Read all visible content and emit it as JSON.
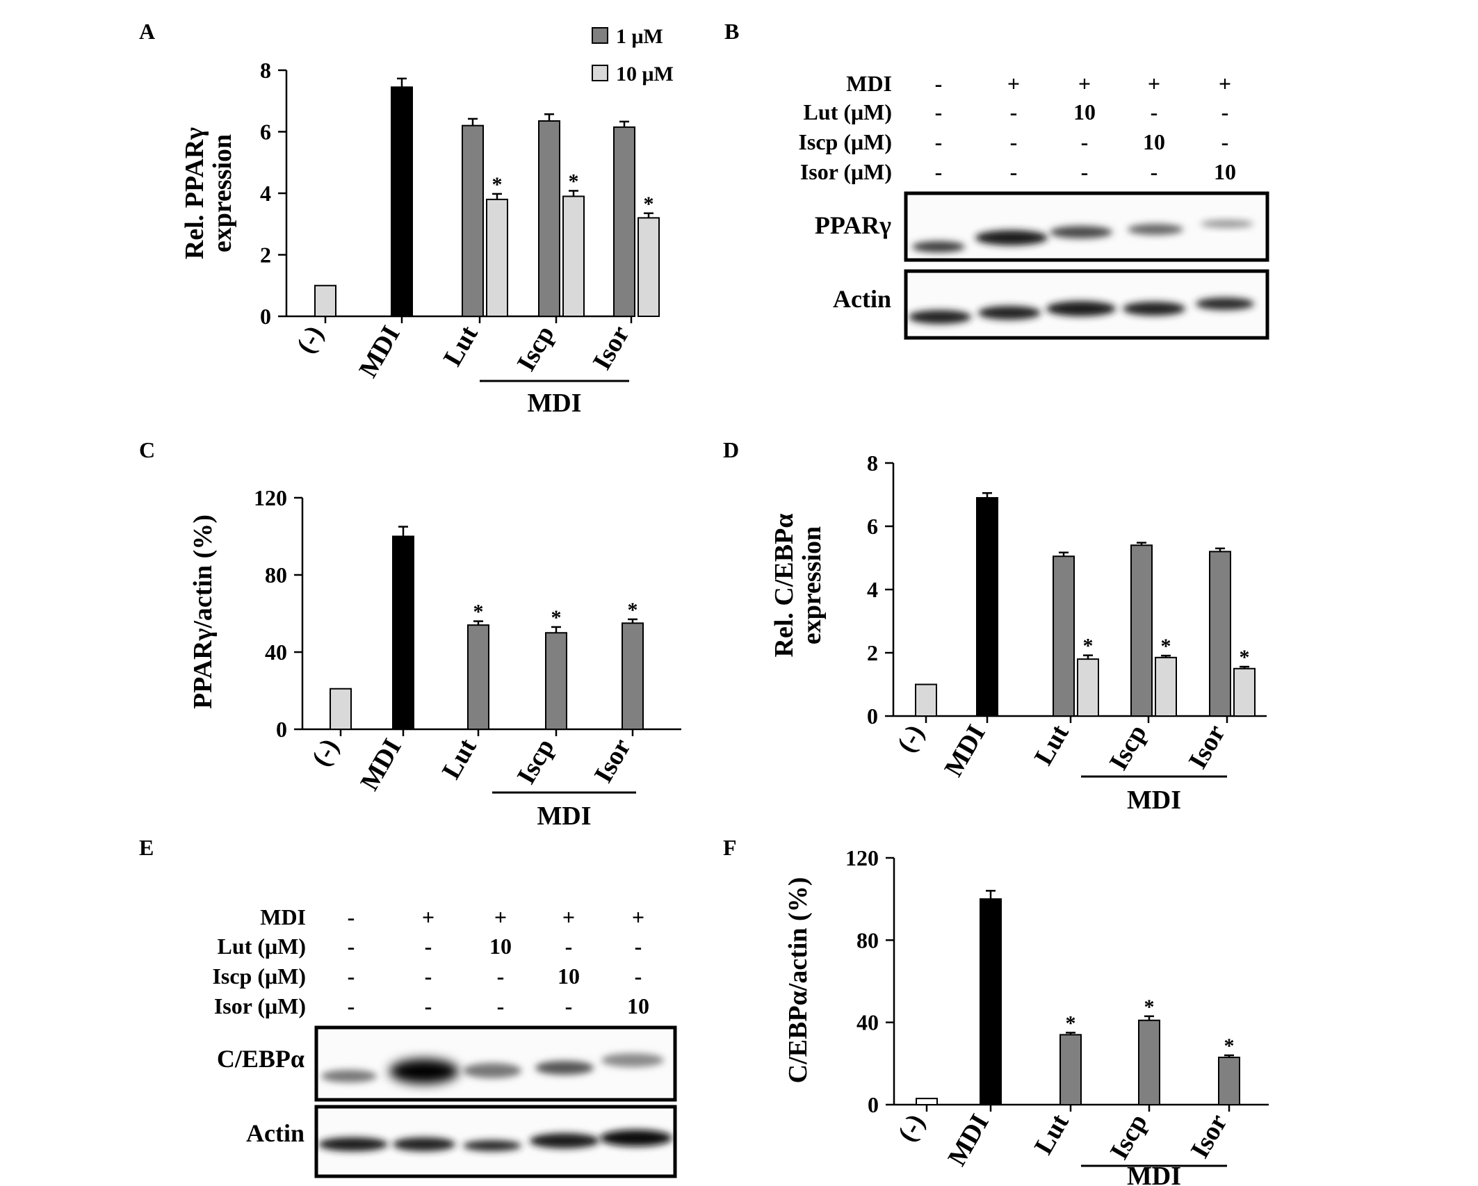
{
  "colors": {
    "dark_bar": "#808080",
    "light_bar": "#d9d9d9",
    "mdi_bar": "#000000",
    "axis": "#000000"
  },
  "panels": {
    "A": {
      "letter": "A"
    },
    "B": {
      "letter": "B"
    },
    "C": {
      "letter": "C"
    },
    "D": {
      "letter": "D"
    },
    "E": {
      "letter": "E"
    },
    "F": {
      "letter": "F"
    }
  },
  "legend": {
    "entries": [
      {
        "label": "1 μM",
        "color": "#808080"
      },
      {
        "label": "10 μM",
        "color": "#d9d9d9"
      }
    ]
  },
  "blot_B": {
    "row_labels": [
      "MDI",
      "Lut (μM)",
      "Iscp (μM)",
      "Isor (μM)"
    ],
    "row_values": [
      [
        "-",
        "+",
        "+",
        "+",
        "+"
      ],
      [
        "-",
        "-",
        "10",
        "-",
        "-"
      ],
      [
        "-",
        "-",
        "-",
        "10",
        "-"
      ],
      [
        "-",
        "-",
        "-",
        "-",
        "10"
      ]
    ],
    "band_labels": [
      "PPARγ",
      "Actin"
    ]
  },
  "blot_E": {
    "row_labels": [
      "MDI",
      "Lut (μM)",
      "Iscp (μM)",
      "Isor (μM)"
    ],
    "row_values": [
      [
        "-",
        "+",
        "+",
        "+",
        "+"
      ],
      [
        "-",
        "-",
        "10",
        "-",
        "-"
      ],
      [
        "-",
        "-",
        "-",
        "10",
        "-"
      ],
      [
        "-",
        "-",
        "-",
        "-",
        "10"
      ]
    ],
    "band_labels": [
      "C/EBPα",
      "Actin"
    ]
  },
  "chart_data": [
    {
      "panel": "A",
      "type": "bar",
      "ylabel": [
        "Rel. PPARγ",
        "expression"
      ],
      "ylim": [
        0,
        8
      ],
      "yticks": [
        "0",
        "2",
        "4",
        "6",
        "8"
      ],
      "categories": [
        "(-)",
        "MDI",
        "Lut",
        "Iscp",
        "Isor"
      ],
      "group_label": "MDI",
      "bars": [
        {
          "category": "(-)",
          "series": "10 μM",
          "value": 1.0,
          "error": 0,
          "star": false
        },
        {
          "category": "MDI",
          "series": "1 μM",
          "value": 7.45,
          "error": 0.28,
          "star": false
        },
        {
          "category": "Lut",
          "series": "1 μM",
          "value": 6.2,
          "error": 0.22,
          "star": false
        },
        {
          "category": "Lut",
          "series": "10 μM",
          "value": 3.8,
          "error": 0.18,
          "star": true
        },
        {
          "category": "Iscp",
          "series": "1 μM",
          "value": 6.35,
          "error": 0.22,
          "star": false
        },
        {
          "category": "Iscp",
          "series": "10 μM",
          "value": 3.9,
          "error": 0.18,
          "star": true
        },
        {
          "category": "Isor",
          "series": "1 μM",
          "value": 6.15,
          "error": 0.18,
          "star": false
        },
        {
          "category": "Isor",
          "series": "10 μM",
          "value": 3.2,
          "error": 0.15,
          "star": true
        }
      ]
    },
    {
      "panel": "C",
      "type": "bar",
      "ylabel": [
        "PPARγ/actin (%)"
      ],
      "ylim": [
        0,
        120
      ],
      "yticks": [
        "0",
        "40",
        "80",
        "120"
      ],
      "categories": [
        "(-)",
        "MDI",
        "Lut",
        "Iscp",
        "Isor"
      ],
      "group_label": "MDI",
      "bars": [
        {
          "category": "(-)",
          "value": 21,
          "error": 0,
          "star": false
        },
        {
          "category": "MDI",
          "value": 100,
          "error": 5,
          "star": false
        },
        {
          "category": "Lut",
          "value": 54,
          "error": 2,
          "star": true
        },
        {
          "category": "Iscp",
          "value": 50,
          "error": 3,
          "star": true
        },
        {
          "category": "Isor",
          "value": 55,
          "error": 2,
          "star": true
        }
      ]
    },
    {
      "panel": "D",
      "type": "bar",
      "ylabel": [
        "Rel. C/EBPα",
        "expression"
      ],
      "ylim": [
        0,
        8
      ],
      "yticks": [
        "0",
        "2",
        "4",
        "6",
        "8"
      ],
      "categories": [
        "(-)",
        "MDI",
        "Lut",
        "Iscp",
        "Isor"
      ],
      "group_label": "MDI",
      "bars": [
        {
          "category": "(-)",
          "series": "10 μM",
          "value": 1.0,
          "error": 0,
          "star": false
        },
        {
          "category": "MDI",
          "series": "1 μM",
          "value": 6.9,
          "error": 0.15,
          "star": false
        },
        {
          "category": "Lut",
          "series": "1 μM",
          "value": 5.05,
          "error": 0.12,
          "star": false
        },
        {
          "category": "Lut",
          "series": "10 μM",
          "value": 1.8,
          "error": 0.12,
          "star": true
        },
        {
          "category": "Iscp",
          "series": "1 μM",
          "value": 5.4,
          "error": 0.08,
          "star": false
        },
        {
          "category": "Iscp",
          "series": "10 μM",
          "value": 1.85,
          "error": 0.06,
          "star": true
        },
        {
          "category": "Isor",
          "series": "1 μM",
          "value": 5.2,
          "error": 0.1,
          "star": false
        },
        {
          "category": "Isor",
          "series": "10 μM",
          "value": 1.5,
          "error": 0.06,
          "star": true
        }
      ]
    },
    {
      "panel": "F",
      "type": "bar",
      "ylabel": [
        "C/EBPα/actin (%)"
      ],
      "ylim": [
        0,
        120
      ],
      "yticks": [
        "0",
        "40",
        "80",
        "120"
      ],
      "categories": [
        "(-)",
        "MDI",
        "Lut",
        "Iscp",
        "Isor"
      ],
      "group_label": "MDI",
      "bars": [
        {
          "category": "(-)",
          "value": 3,
          "error": 0,
          "star": false
        },
        {
          "category": "MDI",
          "value": 100,
          "error": 4,
          "star": false
        },
        {
          "category": "Lut",
          "value": 34,
          "error": 1,
          "star": true
        },
        {
          "category": "Iscp",
          "value": 41,
          "error": 2,
          "star": true
        },
        {
          "category": "Isor",
          "value": 23,
          "error": 1,
          "star": true
        }
      ]
    }
  ]
}
